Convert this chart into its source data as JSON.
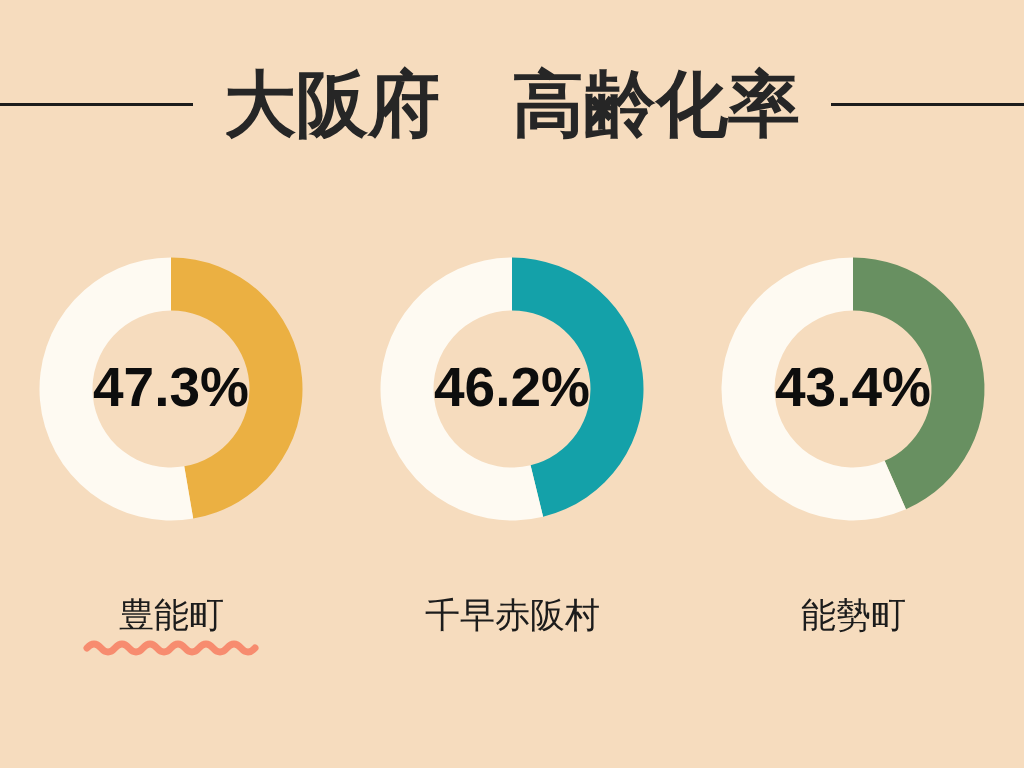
{
  "chart_data": [
    {
      "type": "donut",
      "title": "大阪府　高齢化率",
      "subtitle": "豊能町",
      "annotations": [
        "47.3%"
      ],
      "categories": [
        null,
        null
      ],
      "values": [
        47.3,
        52.7
      ],
      "colors": [
        "#ebb042",
        "#fefaf2"
      ]
    },
    {
      "type": "donut",
      "subtitle": "千早赤阪村",
      "annotations": [
        "46.2%"
      ],
      "categories": [
        null,
        null
      ],
      "values": [
        46.2,
        53.8
      ],
      "colors": [
        "#14a1a9",
        "#fefaf2"
      ]
    },
    {
      "type": "donut",
      "subtitle": "能勢町",
      "annotations": [
        "43.4%"
      ],
      "categories": [
        null,
        null
      ],
      "values": [
        43.4,
        56.6
      ],
      "colors": [
        "#689061",
        "#fefaf2"
      ]
    }
  ]
}
